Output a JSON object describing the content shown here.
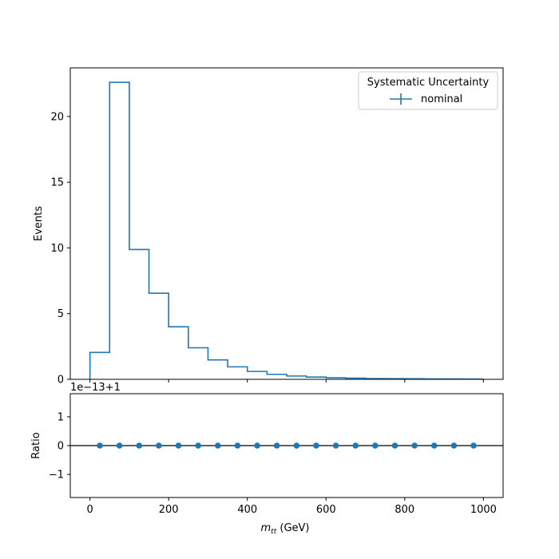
{
  "chart_data": [
    {
      "type": "histogram",
      "panel": "main",
      "ylabel": "Events",
      "xlim": [
        -50,
        1050
      ],
      "ylim": [
        0,
        23.7
      ],
      "yticks": [
        0,
        5,
        10,
        15,
        20
      ],
      "bin_edges": [
        0,
        50,
        100,
        150,
        200,
        250,
        300,
        350,
        400,
        450,
        500,
        550,
        600,
        650,
        700,
        750,
        800,
        850,
        900,
        950,
        1000
      ],
      "series": [
        {
          "name": "nominal",
          "color": "#1f77b4",
          "values": [
            2.05,
            22.6,
            9.88,
            6.55,
            4.0,
            2.4,
            1.48,
            0.95,
            0.6,
            0.38,
            0.25,
            0.17,
            0.12,
            0.09,
            0.06,
            0.05,
            0.04,
            0.03,
            0.03,
            0.02
          ]
        }
      ],
      "legend": {
        "title": "Systematic Uncertainty",
        "placement": "top-right"
      }
    },
    {
      "type": "scatter",
      "panel": "ratio",
      "ylabel": "Ratio",
      "xlabel_prefix": "m",
      "xlabel_subscript": "tt",
      "xlabel_suffix": " (GeV)",
      "offset_text": "1e−13+1",
      "xlim": [
        -50,
        1050
      ],
      "ylim": [
        -1.8,
        1.8
      ],
      "xticks": [
        0,
        200,
        400,
        600,
        800,
        1000
      ],
      "yticks": [
        -1,
        0,
        1
      ],
      "reference_line": 0,
      "series": [
        {
          "name": "nominal",
          "color": "#1f77b4",
          "x": [
            25,
            75,
            125,
            175,
            225,
            275,
            325,
            375,
            425,
            475,
            525,
            575,
            625,
            675,
            725,
            775,
            825,
            875,
            925,
            975
          ],
          "y": [
            0,
            0,
            0,
            0,
            0,
            0,
            0,
            0,
            0,
            0,
            0,
            0,
            0,
            0,
            0,
            0,
            0,
            0,
            0,
            0
          ]
        }
      ]
    }
  ]
}
